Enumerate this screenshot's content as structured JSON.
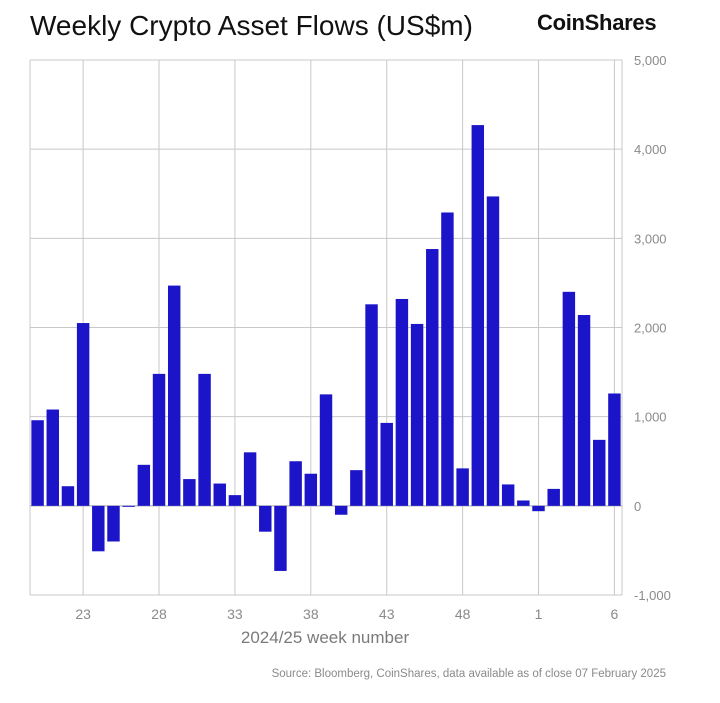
{
  "title": "Weekly Crypto Asset Flows (US$m)",
  "brand": "CoinShares",
  "source": "Source: Bloomberg, CoinShares, data available as of close 07 February 2025",
  "colors": {
    "bar": "#1c14c8",
    "grid": "#c8c8c8",
    "axis_text": "#8a8a8a"
  },
  "chart_data": {
    "type": "bar",
    "xlabel": "2024/25 week number",
    "ylabel": "",
    "ylim": [
      -1000,
      5000
    ],
    "yticks": [
      -1000,
      0,
      1000,
      2000,
      3000,
      4000,
      5000
    ],
    "ytick_labels": [
      "-1,000",
      "0",
      "1,000",
      "2,000",
      "3,000",
      "4,000",
      "5,000"
    ],
    "y_axis_side": "right",
    "grid": true,
    "categories": [
      "20",
      "21",
      "22",
      "23",
      "24",
      "25",
      "26",
      "27",
      "28",
      "29",
      "30",
      "31",
      "32",
      "33",
      "34",
      "35",
      "36",
      "37",
      "38",
      "39",
      "40",
      "41",
      "42",
      "43",
      "44",
      "45",
      "46",
      "47",
      "48",
      "49",
      "50",
      "51",
      "52",
      "1",
      "2",
      "3",
      "4",
      "5",
      "6"
    ],
    "xtick_labels": [
      "23",
      "28",
      "33",
      "38",
      "43",
      "48",
      "1",
      "6"
    ],
    "values": [
      960,
      1080,
      220,
      2050,
      -510,
      -400,
      -10,
      460,
      1480,
      2470,
      300,
      1480,
      250,
      120,
      600,
      -290,
      -730,
      500,
      360,
      1250,
      -100,
      400,
      2260,
      930,
      2320,
      2040,
      2880,
      3290,
      420,
      4270,
      3470,
      240,
      60,
      -60,
      190,
      2400,
      2140,
      740,
      1260
    ]
  }
}
